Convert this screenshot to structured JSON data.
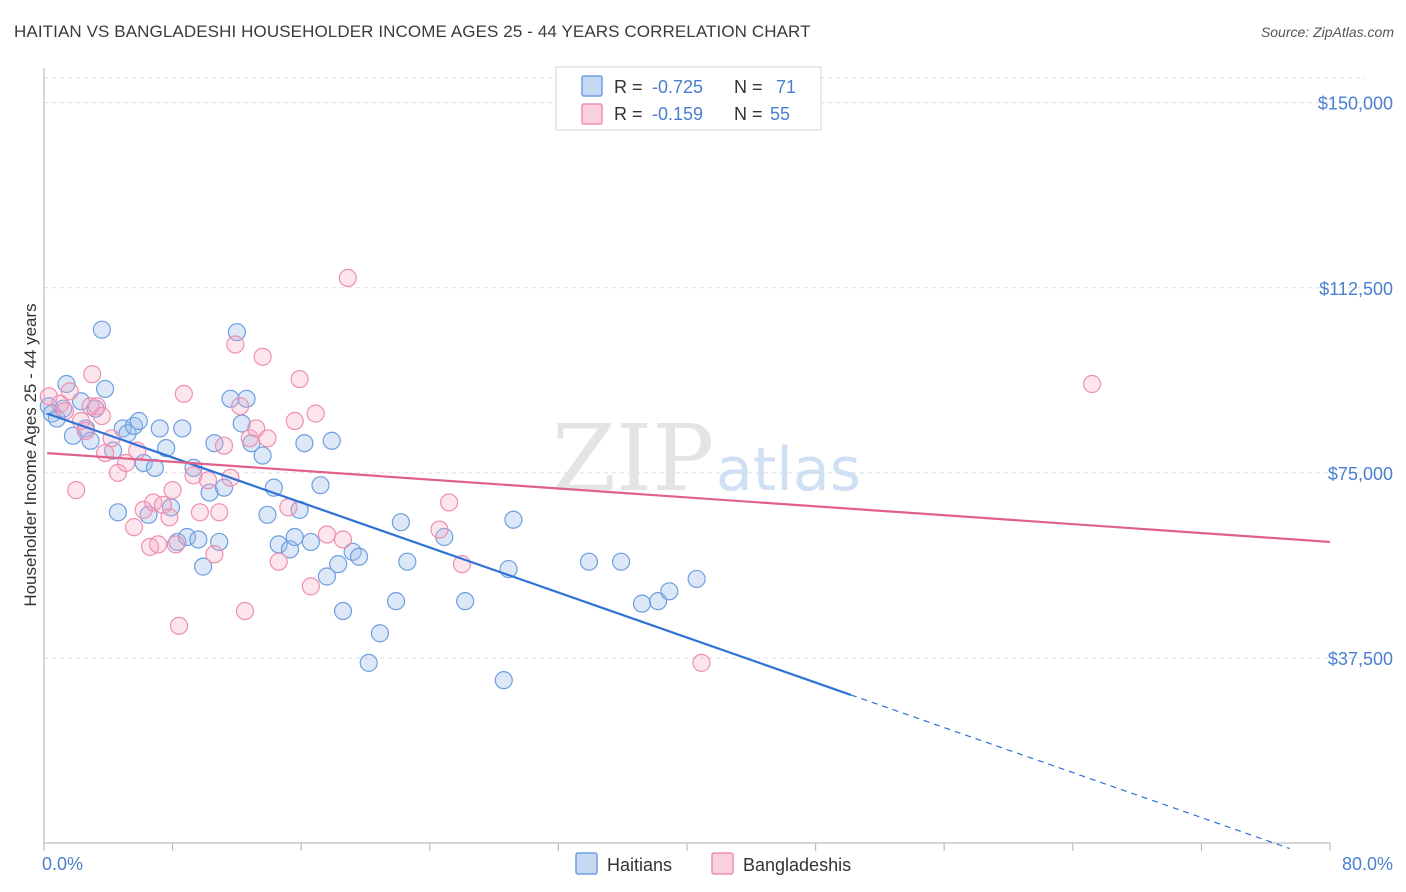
{
  "header": {
    "title": "HAITIAN VS BANGLADESHI HOUSEHOLDER INCOME AGES 25 - 44 YEARS CORRELATION CHART",
    "source": "Source: ZipAtlas.com"
  },
  "watermark": {
    "zip": "ZIP",
    "atlas": "atlas"
  },
  "stats_legend": {
    "rows": [
      {
        "r_label": "R =",
        "r_value": "-0.725",
        "n_label": "N =",
        "n_value": "71",
        "color": "#6f9ee0"
      },
      {
        "r_label": "R =",
        "r_value": "-0.159",
        "n_label": "N =",
        "n_value": "55",
        "color": "#ef8fb0"
      }
    ]
  },
  "bottom_legend": [
    {
      "label": "Haitians",
      "color": "#6f9ee0"
    },
    {
      "label": "Bangladeshis",
      "color": "#ef8fb0"
    }
  ],
  "chart_data": {
    "type": "scatter",
    "title": "HAITIAN VS BANGLADESHI HOUSEHOLDER INCOME AGES 25 - 44 YEARS CORRELATION CHART",
    "ylabel": "Householder Income Ages 25 - 44 years",
    "xlim": [
      0,
      80
    ],
    "ylim": [
      0,
      155000
    ],
    "x_tick_labels": [
      "0.0%",
      "80.0%"
    ],
    "y_ticks": [
      37500,
      75000,
      112500,
      150000
    ],
    "y_tick_labels": [
      "$37,500",
      "$75,000",
      "$112,500",
      "$150,000"
    ],
    "grid": true,
    "legend_position": "top-center",
    "series": [
      {
        "name": "Haitians",
        "color": "#6f9ee0",
        "line_color": "#2f72d4",
        "trend": {
          "x0": 0.2,
          "y0": 87000,
          "x1": 50.2,
          "y1": 30000,
          "dashed_to_x": 77.5
        },
        "points": [
          [
            0.3,
            88500
          ],
          [
            0.5,
            87000
          ],
          [
            0.8,
            86000
          ],
          [
            1.2,
            88000
          ],
          [
            1.4,
            93000
          ],
          [
            1.8,
            82500
          ],
          [
            2.3,
            89500
          ],
          [
            2.6,
            84000
          ],
          [
            2.9,
            81500
          ],
          [
            3.2,
            88000
          ],
          [
            3.6,
            104000
          ],
          [
            3.8,
            92000
          ],
          [
            4.3,
            79500
          ],
          [
            4.6,
            67000
          ],
          [
            4.9,
            84000
          ],
          [
            5.2,
            83000
          ],
          [
            5.6,
            84500
          ],
          [
            5.9,
            85500
          ],
          [
            6.2,
            77000
          ],
          [
            6.5,
            66500
          ],
          [
            6.9,
            76000
          ],
          [
            7.2,
            84000
          ],
          [
            7.6,
            80000
          ],
          [
            7.9,
            68000
          ],
          [
            8.3,
            61000
          ],
          [
            8.6,
            84000
          ],
          [
            8.9,
            62000
          ],
          [
            9.3,
            76000
          ],
          [
            9.6,
            61500
          ],
          [
            9.9,
            56000
          ],
          [
            10.3,
            71000
          ],
          [
            10.6,
            81000
          ],
          [
            10.9,
            61000
          ],
          [
            11.2,
            72000
          ],
          [
            11.6,
            90000
          ],
          [
            12.0,
            103500
          ],
          [
            12.3,
            85000
          ],
          [
            12.6,
            90000
          ],
          [
            12.9,
            81000
          ],
          [
            13.6,
            78500
          ],
          [
            13.9,
            66500
          ],
          [
            14.3,
            72000
          ],
          [
            14.6,
            60500
          ],
          [
            15.3,
            59500
          ],
          [
            15.6,
            62000
          ],
          [
            15.9,
            67500
          ],
          [
            16.2,
            81000
          ],
          [
            16.6,
            61000
          ],
          [
            17.2,
            72500
          ],
          [
            17.6,
            54000
          ],
          [
            17.9,
            81500
          ],
          [
            18.3,
            56500
          ],
          [
            18.6,
            47000
          ],
          [
            19.2,
            59000
          ],
          [
            19.6,
            58000
          ],
          [
            20.2,
            36500
          ],
          [
            20.9,
            42500
          ],
          [
            21.9,
            49000
          ],
          [
            22.2,
            65000
          ],
          [
            22.6,
            57000
          ],
          [
            24.9,
            62000
          ],
          [
            26.2,
            49000
          ],
          [
            28.6,
            33000
          ],
          [
            28.9,
            55500
          ],
          [
            29.2,
            65500
          ],
          [
            33.9,
            57000
          ],
          [
            35.9,
            57000
          ],
          [
            37.2,
            48500
          ],
          [
            38.2,
            49000
          ],
          [
            38.9,
            51000
          ],
          [
            40.6,
            53500
          ]
        ]
      },
      {
        "name": "Bangladeshis",
        "color": "#ef8fb0",
        "line_color": "#e0608a",
        "trend": {
          "x0": 0.2,
          "y0": 79000,
          "x1": 80.0,
          "y1": 61000
        },
        "points": [
          [
            0.3,
            90500
          ],
          [
            1.0,
            89000
          ],
          [
            1.3,
            87500
          ],
          [
            1.6,
            91500
          ],
          [
            2.0,
            71500
          ],
          [
            2.3,
            85500
          ],
          [
            2.6,
            83500
          ],
          [
            2.9,
            88500
          ],
          [
            3.0,
            95000
          ],
          [
            3.3,
            88500
          ],
          [
            3.6,
            86500
          ],
          [
            3.8,
            79000
          ],
          [
            4.2,
            82000
          ],
          [
            4.6,
            75000
          ],
          [
            5.1,
            77000
          ],
          [
            5.6,
            64000
          ],
          [
            5.8,
            79500
          ],
          [
            6.2,
            67500
          ],
          [
            6.6,
            60000
          ],
          [
            6.8,
            69000
          ],
          [
            7.1,
            60500
          ],
          [
            7.4,
            68500
          ],
          [
            7.8,
            66000
          ],
          [
            8.0,
            71500
          ],
          [
            8.2,
            60500
          ],
          [
            8.4,
            44000
          ],
          [
            8.7,
            91000
          ],
          [
            9.3,
            74500
          ],
          [
            9.7,
            67000
          ],
          [
            10.2,
            73500
          ],
          [
            10.6,
            58500
          ],
          [
            10.9,
            67000
          ],
          [
            11.2,
            80500
          ],
          [
            11.6,
            74000
          ],
          [
            11.9,
            101000
          ],
          [
            12.2,
            88500
          ],
          [
            12.5,
            47000
          ],
          [
            12.8,
            82000
          ],
          [
            13.2,
            84000
          ],
          [
            13.6,
            98500
          ],
          [
            13.9,
            82000
          ],
          [
            14.6,
            57000
          ],
          [
            15.2,
            68000
          ],
          [
            15.6,
            85500
          ],
          [
            15.9,
            94000
          ],
          [
            16.6,
            52000
          ],
          [
            16.9,
            87000
          ],
          [
            17.6,
            62500
          ],
          [
            18.6,
            61500
          ],
          [
            18.9,
            114500
          ],
          [
            24.6,
            63500
          ],
          [
            25.2,
            69000
          ],
          [
            26.0,
            56500
          ],
          [
            40.9,
            36500
          ],
          [
            65.2,
            93000
          ]
        ]
      }
    ]
  }
}
